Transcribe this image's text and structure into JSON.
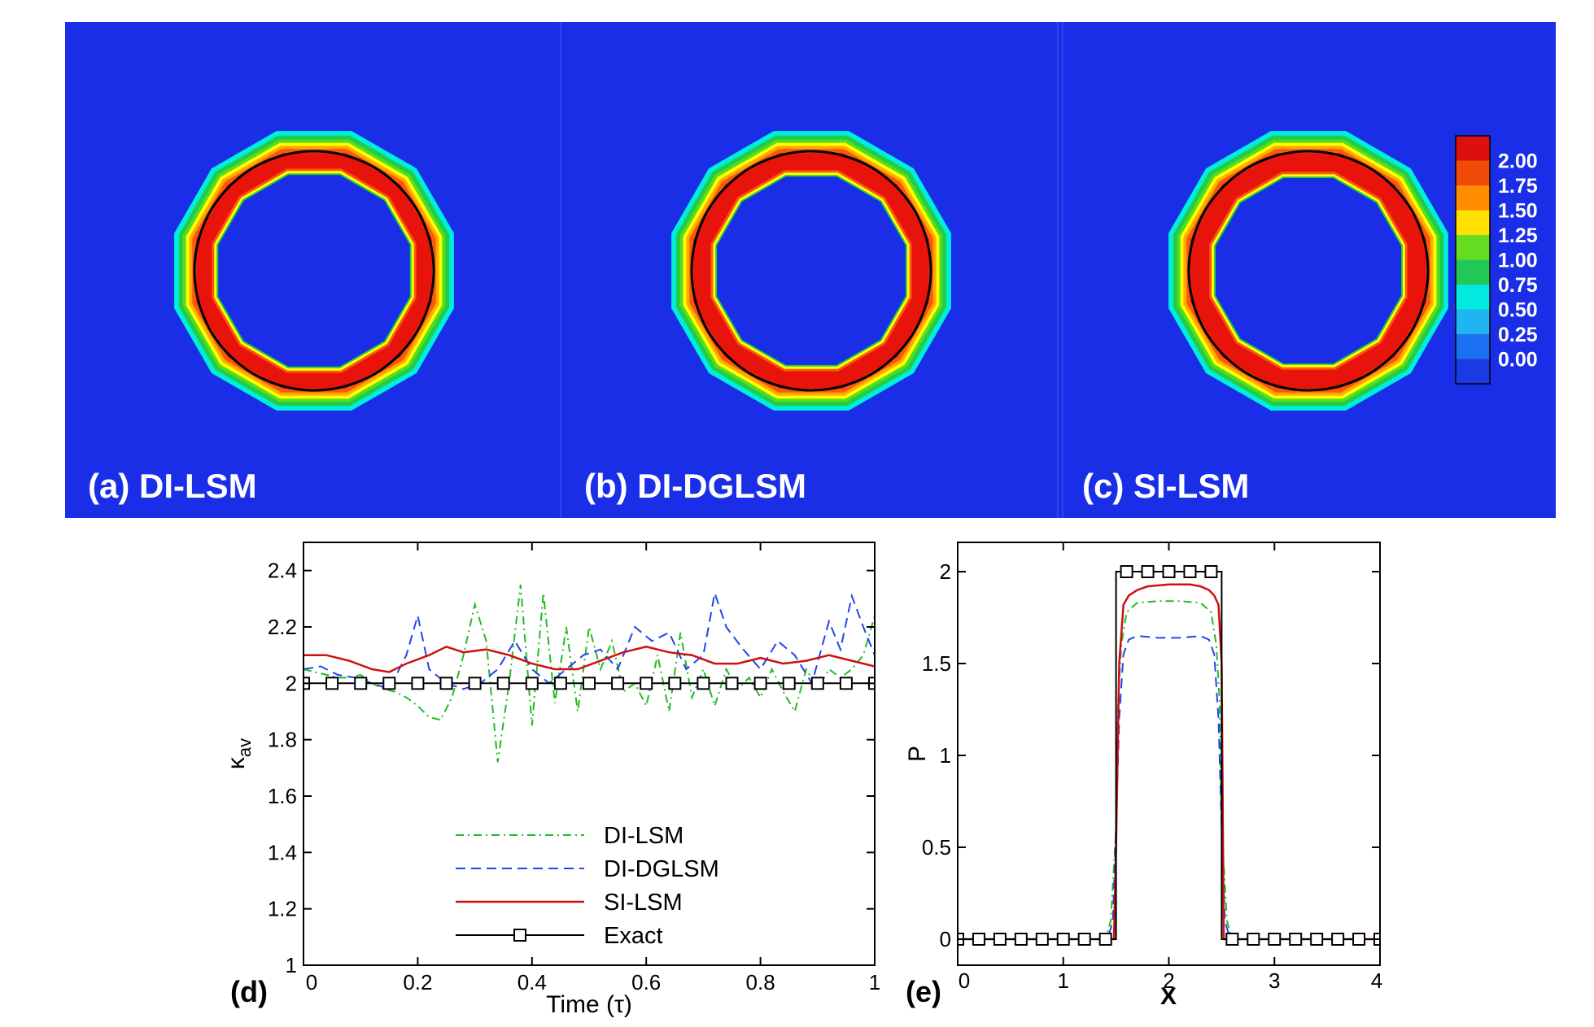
{
  "top_panel": {
    "labels": [
      "(a) DI-LSM",
      "(b) DI-DGLSM",
      "(c) SI-LSM"
    ],
    "colorbar": {
      "levels": [
        "2.00",
        "1.75",
        "1.50",
        "1.25",
        "1.00",
        "0.75",
        "0.50",
        "0.25",
        "0.00"
      ],
      "colors": [
        "#e8140c",
        "#f85a0a",
        "#ffaa00",
        "#ffff00",
        "#55dd22",
        "#22cc44",
        "#00eedd",
        "#10aaee",
        "#1155ee",
        "#1a2ee0"
      ]
    },
    "background_color": "#1a2ee8"
  },
  "chart_data": [
    {
      "type": "line",
      "panel_label": "(d)",
      "xlabel": "Time (τ)",
      "ylabel": "κav",
      "xlim": [
        0,
        1
      ],
      "ylim": [
        1,
        2.5
      ],
      "xticks": [
        "0",
        "0.2",
        "0.4",
        "0.6",
        "0.8",
        "1"
      ],
      "yticks": [
        "1",
        "1.2",
        "1.4",
        "1.6",
        "1.8",
        "2",
        "2.2",
        "2.4"
      ],
      "legend_position": "lower-center",
      "series": [
        {
          "name": "DI-LSM",
          "color": "#22bb22",
          "style": "dash-dot",
          "x": [
            0,
            0.02,
            0.04,
            0.06,
            0.08,
            0.1,
            0.12,
            0.14,
            0.16,
            0.18,
            0.2,
            0.22,
            0.24,
            0.26,
            0.28,
            0.3,
            0.32,
            0.34,
            0.36,
            0.38,
            0.4,
            0.42,
            0.44,
            0.46,
            0.48,
            0.5,
            0.52,
            0.54,
            0.56,
            0.58,
            0.6,
            0.62,
            0.64,
            0.66,
            0.68,
            0.7,
            0.72,
            0.74,
            0.76,
            0.78,
            0.8,
            0.82,
            0.84,
            0.86,
            0.88,
            0.9,
            0.92,
            0.94,
            0.96,
            0.98,
            1.0
          ],
          "y": [
            2.05,
            2.04,
            2.03,
            2.02,
            2.02,
            2.03,
            2.0,
            1.98,
            1.97,
            1.95,
            1.92,
            1.88,
            1.87,
            1.95,
            2.1,
            2.28,
            2.15,
            1.72,
            2.0,
            2.35,
            1.85,
            2.32,
            1.93,
            2.2,
            1.9,
            2.2,
            2.05,
            2.15,
            1.97,
            2.0,
            1.92,
            2.1,
            1.9,
            2.18,
            1.95,
            2.05,
            1.92,
            2.05,
            1.98,
            2.02,
            1.95,
            2.05,
            1.97,
            1.9,
            2.05,
            1.98,
            2.05,
            2.02,
            2.05,
            2.1,
            2.24
          ]
        },
        {
          "name": "DI-DGLSM",
          "color": "#2244ee",
          "style": "dashed",
          "x": [
            0,
            0.03,
            0.06,
            0.09,
            0.12,
            0.15,
            0.18,
            0.2,
            0.22,
            0.25,
            0.28,
            0.31,
            0.34,
            0.37,
            0.4,
            0.43,
            0.46,
            0.49,
            0.52,
            0.55,
            0.58,
            0.61,
            0.64,
            0.67,
            0.7,
            0.72,
            0.74,
            0.77,
            0.8,
            0.83,
            0.86,
            0.89,
            0.92,
            0.94,
            0.96,
            0.98,
            1.0
          ],
          "y": [
            2.05,
            2.06,
            2.03,
            2.02,
            2.0,
            1.98,
            2.1,
            2.24,
            2.05,
            2.0,
            1.98,
            2.0,
            2.05,
            2.15,
            2.05,
            2.0,
            2.05,
            2.1,
            2.12,
            2.05,
            2.2,
            2.15,
            2.18,
            2.05,
            2.1,
            2.32,
            2.2,
            2.12,
            2.05,
            2.15,
            2.1,
            2.0,
            2.22,
            2.12,
            2.31,
            2.2,
            2.1
          ]
        },
        {
          "name": "SI-LSM",
          "color": "#cc1111",
          "style": "solid",
          "x": [
            0,
            0.04,
            0.08,
            0.12,
            0.15,
            0.18,
            0.22,
            0.25,
            0.28,
            0.32,
            0.36,
            0.4,
            0.44,
            0.48,
            0.52,
            0.56,
            0.6,
            0.64,
            0.68,
            0.72,
            0.76,
            0.8,
            0.84,
            0.88,
            0.92,
            0.96,
            1.0
          ],
          "y": [
            2.1,
            2.1,
            2.08,
            2.05,
            2.04,
            2.07,
            2.1,
            2.13,
            2.11,
            2.12,
            2.1,
            2.07,
            2.05,
            2.05,
            2.08,
            2.11,
            2.13,
            2.11,
            2.1,
            2.07,
            2.07,
            2.09,
            2.07,
            2.08,
            2.1,
            2.08,
            2.06
          ]
        },
        {
          "name": "Exact",
          "color": "#000000",
          "style": "solid-square-markers",
          "x": [
            0,
            0.05,
            0.1,
            0.15,
            0.2,
            0.25,
            0.3,
            0.35,
            0.4,
            0.45,
            0.5,
            0.55,
            0.6,
            0.65,
            0.7,
            0.75,
            0.8,
            0.85,
            0.9,
            0.95,
            1.0
          ],
          "y": [
            2,
            2,
            2,
            2,
            2,
            2,
            2,
            2,
            2,
            2,
            2,
            2,
            2,
            2,
            2,
            2,
            2,
            2,
            2,
            2,
            2
          ]
        }
      ]
    },
    {
      "type": "line",
      "panel_label": "(e)",
      "xlabel": "X",
      "ylabel": "P",
      "xlim": [
        0,
        4
      ],
      "ylim": [
        0,
        2
      ],
      "xticks": [
        "0",
        "1",
        "2",
        "3",
        "4"
      ],
      "yticks": [
        "0",
        "0.5",
        "1",
        "1.5",
        "2"
      ],
      "series": [
        {
          "color": "#22bb22",
          "style": "dash-dot",
          "x": [
            0,
            1.4,
            1.45,
            1.5,
            1.52,
            1.55,
            1.6,
            1.7,
            1.9,
            2.1,
            2.3,
            2.4,
            2.45,
            2.48,
            2.5,
            2.55,
            2.6,
            4
          ],
          "y": [
            0,
            0,
            0.1,
            0.6,
            1.3,
            1.6,
            1.78,
            1.83,
            1.84,
            1.84,
            1.83,
            1.78,
            1.6,
            1.3,
            0.6,
            0.1,
            0,
            0
          ]
        },
        {
          "color": "#2244ee",
          "style": "dashed",
          "x": [
            0,
            1.42,
            1.47,
            1.5,
            1.53,
            1.57,
            1.62,
            1.7,
            1.9,
            2.1,
            2.3,
            2.38,
            2.43,
            2.47,
            2.5,
            2.53,
            2.58,
            4
          ],
          "y": [
            0,
            0,
            0.1,
            0.6,
            1.2,
            1.55,
            1.63,
            1.65,
            1.64,
            1.64,
            1.65,
            1.63,
            1.55,
            1.2,
            0.6,
            0.1,
            0,
            0
          ]
        },
        {
          "color": "#cc1111",
          "style": "solid",
          "x": [
            0,
            1.48,
            1.5,
            1.53,
            1.57,
            1.62,
            1.7,
            1.8,
            2.0,
            2.2,
            2.3,
            2.38,
            2.43,
            2.47,
            2.5,
            2.52,
            4
          ],
          "y": [
            0,
            0,
            0.5,
            1.5,
            1.82,
            1.87,
            1.9,
            1.92,
            1.93,
            1.93,
            1.92,
            1.9,
            1.87,
            1.82,
            1.5,
            0,
            0
          ]
        },
        {
          "color": "#000000",
          "style": "solid-square-markers",
          "x": [
            0,
            1.5,
            1.5,
            2.5,
            2.5,
            4
          ],
          "y": [
            0,
            0,
            2,
            2,
            0,
            0
          ],
          "markers_x": [
            0,
            0.2,
            0.4,
            0.6,
            0.8,
            1.0,
            1.2,
            1.4,
            1.6,
            1.8,
            2.0,
            2.2,
            2.4,
            2.6,
            2.8,
            3.0,
            3.2,
            3.4,
            3.6,
            3.8,
            4.0
          ],
          "markers_y": [
            0,
            0,
            0,
            0,
            0,
            0,
            0,
            0,
            2,
            2,
            2,
            2,
            2,
            0,
            0,
            0,
            0,
            0,
            0,
            0,
            0
          ]
        }
      ]
    }
  ]
}
